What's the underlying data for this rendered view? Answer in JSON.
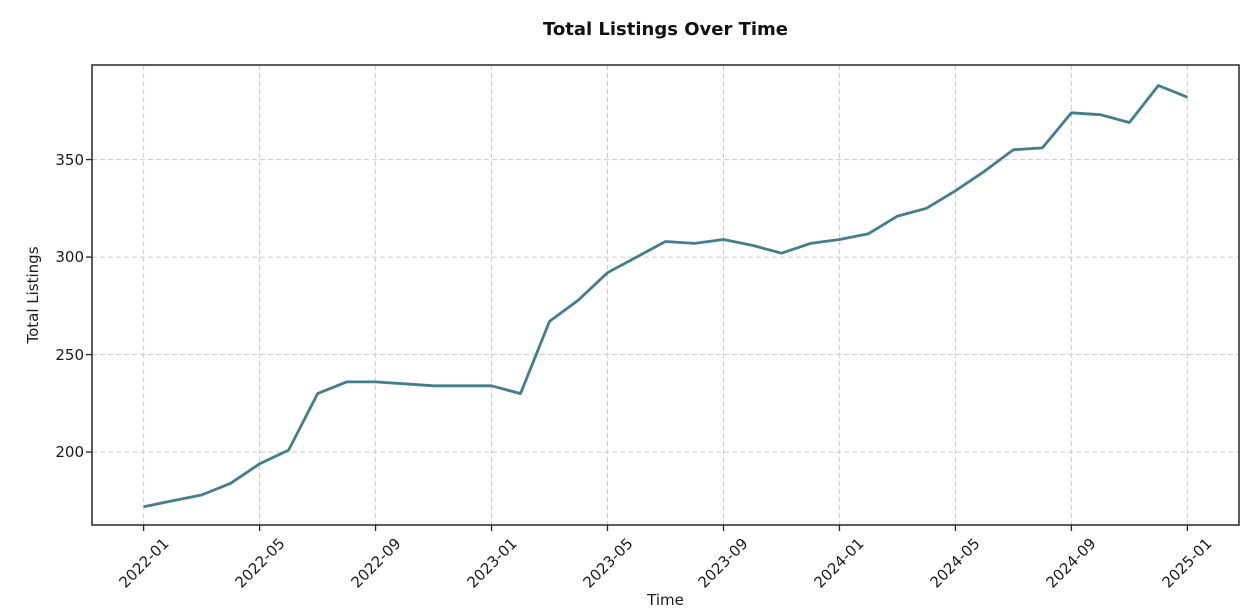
{
  "chart_data": {
    "type": "line",
    "title": "Total Listings Over Time",
    "xlabel": "Time",
    "ylabel": "Total Listings",
    "x": [
      "2022-01",
      "2022-02",
      "2022-03",
      "2022-04",
      "2022-05",
      "2022-06",
      "2022-07",
      "2022-08",
      "2022-09",
      "2022-10",
      "2022-11",
      "2022-12",
      "2023-01",
      "2023-02",
      "2023-03",
      "2023-04",
      "2023-05",
      "2023-06",
      "2023-07",
      "2023-08",
      "2023-09",
      "2023-10",
      "2023-11",
      "2023-12",
      "2024-01",
      "2024-02",
      "2024-03",
      "2024-04",
      "2024-05",
      "2024-06",
      "2024-07",
      "2024-08",
      "2024-09",
      "2024-10",
      "2024-11",
      "2024-12",
      "2025-01"
    ],
    "series": [
      {
        "name": "Total Listings",
        "values": [
          172,
          175,
          178,
          184,
          194,
          201,
          230,
          236,
          236,
          235,
          234,
          234,
          234,
          230,
          267,
          278,
          292,
          300,
          308,
          307,
          309,
          306,
          302,
          307,
          309,
          312,
          321,
          325,
          334,
          344,
          355,
          356,
          374,
          373,
          369,
          388,
          382
        ]
      }
    ],
    "x_tick_labels": [
      "2022-01",
      "2022-05",
      "2022-09",
      "2023-01",
      "2023-05",
      "2023-09",
      "2024-01",
      "2024-05",
      "2024-09",
      "2025-01"
    ],
    "y_ticks": [
      200,
      250,
      300,
      350
    ],
    "ylim": [
      162.6,
      398.5
    ],
    "x_index_lim": [
      -1.78,
      37.78
    ],
    "grid": true,
    "grid_line_style": "dashed",
    "legend": "none",
    "x_tick_rotation_deg": 45
  },
  "style": {
    "line_color": "#437d8e",
    "grid_color": "#cccccc",
    "spine_color": "#262626",
    "tick_color": "#262626",
    "text_color": "#1a1a1a",
    "background_color": "#ffffff"
  }
}
